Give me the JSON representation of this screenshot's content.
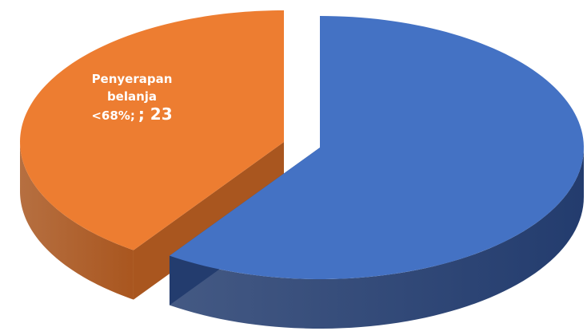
{
  "chart_data": {
    "type": "pie",
    "categories": [
      "Penyerapan belanja <68%;",
      null
    ],
    "values": [
      23,
      34
    ],
    "value_labels": [
      "; 23",
      null
    ],
    "colors": [
      "#ed7d31",
      "#4472c4"
    ],
    "side_colors": [
      "#a9561f",
      "#233c6e"
    ],
    "exploded": 0
  }
}
